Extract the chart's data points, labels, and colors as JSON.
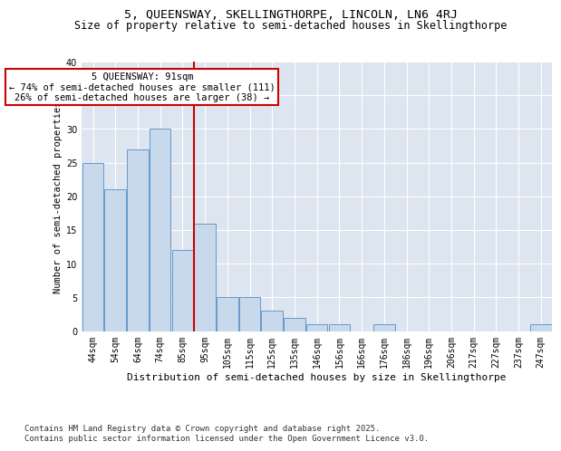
{
  "title": "5, QUEENSWAY, SKELLINGTHORPE, LINCOLN, LN6 4RJ",
  "subtitle": "Size of property relative to semi-detached houses in Skellingthorpe",
  "xlabel": "Distribution of semi-detached houses by size in Skellingthorpe",
  "ylabel": "Number of semi-detached properties",
  "categories": [
    "44sqm",
    "54sqm",
    "64sqm",
    "74sqm",
    "85sqm",
    "95sqm",
    "105sqm",
    "115sqm",
    "125sqm",
    "135sqm",
    "146sqm",
    "156sqm",
    "166sqm",
    "176sqm",
    "186sqm",
    "196sqm",
    "206sqm",
    "217sqm",
    "227sqm",
    "237sqm",
    "247sqm"
  ],
  "values": [
    25,
    21,
    27,
    30,
    12,
    16,
    5,
    5,
    3,
    2,
    1,
    1,
    0,
    1,
    0,
    0,
    0,
    0,
    0,
    0,
    1
  ],
  "bar_color": "#c8d9ec",
  "bar_edge_color": "#6699cc",
  "vline_x_index": 4.5,
  "vline_color": "#cc0000",
  "annotation_text": "5 QUEENSWAY: 91sqm\n← 74% of semi-detached houses are smaller (111)\n26% of semi-detached houses are larger (38) →",
  "annotation_box_color": "#ffffff",
  "annotation_box_edge": "#cc0000",
  "ylim": [
    0,
    40
  ],
  "yticks": [
    0,
    5,
    10,
    15,
    20,
    25,
    30,
    35,
    40
  ],
  "background_color": "#dde5f0",
  "plot_background": "#dde5f0",
  "footer": "Contains HM Land Registry data © Crown copyright and database right 2025.\nContains public sector information licensed under the Open Government Licence v3.0.",
  "title_fontsize": 9.5,
  "subtitle_fontsize": 8.5,
  "xlabel_fontsize": 8,
  "ylabel_fontsize": 7.5,
  "tick_fontsize": 7,
  "footer_fontsize": 6.5,
  "ann_fontsize": 7.5
}
